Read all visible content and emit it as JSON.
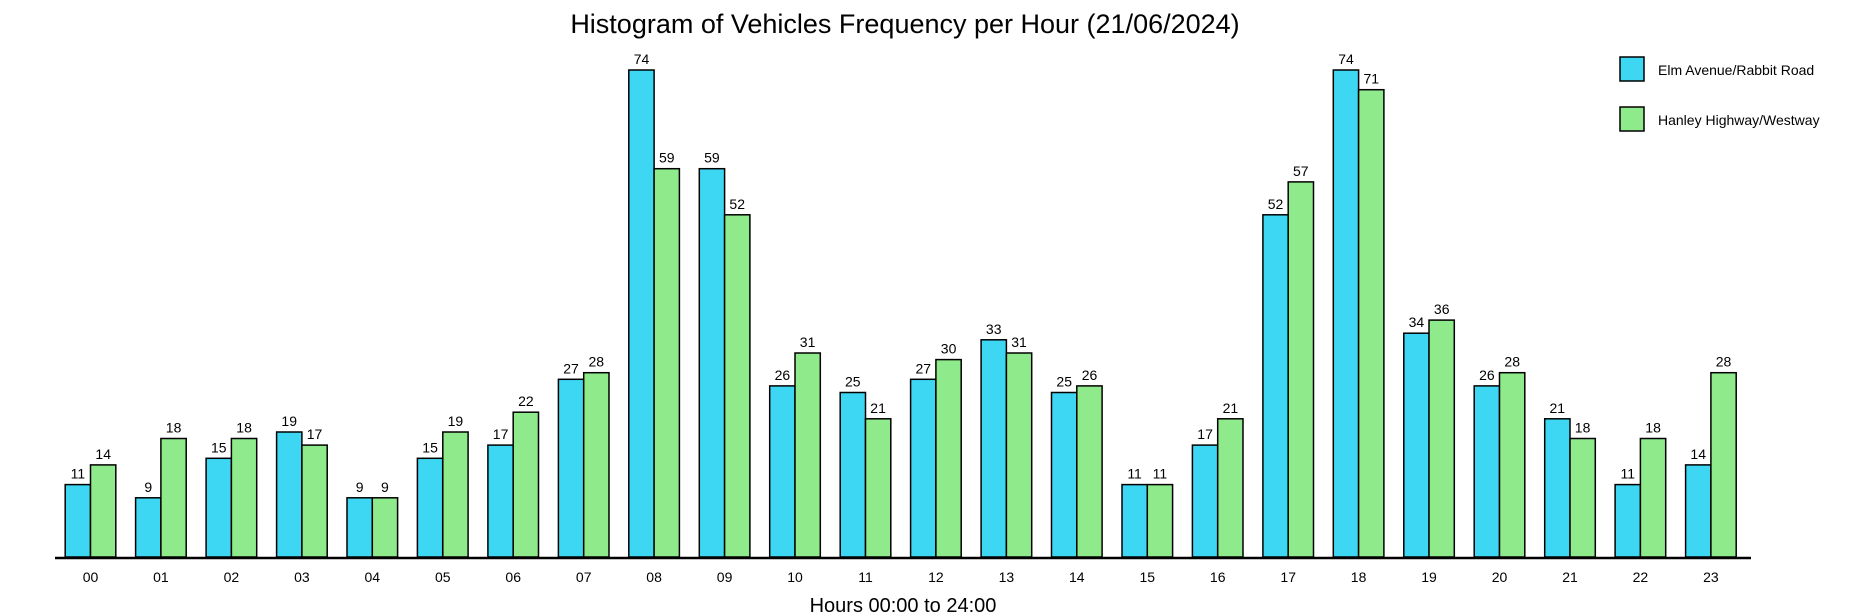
{
  "colors": {
    "series_1": "#3dd7f3",
    "series_2": "#8eea8a",
    "stroke": "#000000",
    "background": "#ffffff"
  },
  "chart_data": {
    "type": "bar",
    "title": "Histogram of Vehicles Frequency per Hour (21/06/2024)",
    "xlabel": "Hours 00:00 to 24:00",
    "ylabel": "",
    "ylim": [
      0,
      74
    ],
    "grid": false,
    "legend_position": "top-right",
    "categories": [
      "00",
      "01",
      "02",
      "03",
      "04",
      "05",
      "06",
      "07",
      "08",
      "09",
      "10",
      "11",
      "12",
      "13",
      "14",
      "15",
      "16",
      "17",
      "18",
      "19",
      "20",
      "21",
      "22",
      "23"
    ],
    "series": [
      {
        "name": "Elm Avenue/Rabbit Road",
        "values": [
          11,
          9,
          15,
          19,
          9,
          15,
          17,
          27,
          74,
          59,
          26,
          25,
          27,
          33,
          25,
          11,
          17,
          52,
          74,
          34,
          26,
          21,
          11,
          14
        ]
      },
      {
        "name": "Hanley Highway/Westway",
        "values": [
          14,
          18,
          18,
          17,
          9,
          19,
          22,
          28,
          59,
          52,
          31,
          21,
          30,
          31,
          26,
          11,
          21,
          57,
          71,
          36,
          28,
          18,
          18,
          28
        ]
      }
    ]
  }
}
